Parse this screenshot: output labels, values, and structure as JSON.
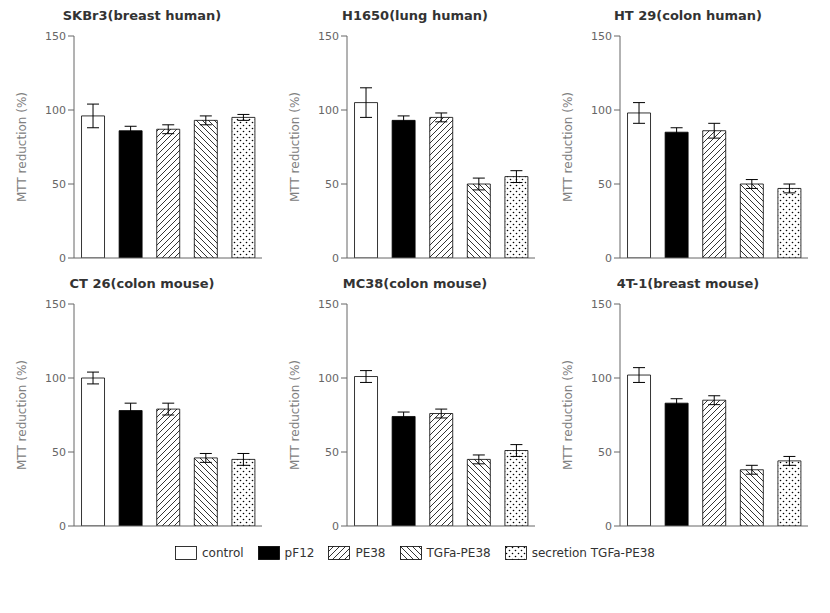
{
  "chart_data": [
    {
      "type": "bar",
      "title": "SKBr3(breast human)",
      "categories": [
        "control",
        "pF12",
        "PE38",
        "TGFa-PE38",
        "secretion TGFa-PE38"
      ],
      "values": [
        96,
        86,
        87,
        93,
        95
      ],
      "errors": [
        8,
        3,
        3,
        3,
        2
      ],
      "colors": [
        "white",
        "black",
        "white",
        "white",
        "white"
      ],
      "ylabel": "MTT reduction (%)",
      "ylim": [
        0,
        150
      ],
      "yticks": [
        0,
        50,
        100,
        150
      ],
      "tick_labels": "y",
      "grid": false,
      "legend": "bottom"
    },
    {
      "type": "bar",
      "title": "H1650(lung human)",
      "categories": [
        "control",
        "pF12",
        "PE38",
        "TGFa-PE38",
        "secretion TGFa-PE38"
      ],
      "values": [
        105,
        93,
        95,
        50,
        55
      ],
      "errors": [
        10,
        3,
        3,
        4,
        4
      ],
      "colors": [
        "white",
        "black",
        "white",
        "white",
        "white"
      ],
      "ylabel": "MTT reduction (%)",
      "ylim": [
        0,
        150
      ],
      "yticks": [
        0,
        50,
        100,
        150
      ],
      "tick_labels": "y",
      "grid": false,
      "legend": "bottom"
    },
    {
      "type": "bar",
      "title": "HT 29(colon human)",
      "categories": [
        "control",
        "pF12",
        "PE38",
        "TGFa-PE38",
        "secretion TGFa-PE38"
      ],
      "values": [
        98,
        85,
        86,
        50,
        47
      ],
      "errors": [
        7,
        3,
        5,
        3,
        3
      ],
      "colors": [
        "white",
        "black",
        "white",
        "white",
        "white"
      ],
      "ylabel": "MTT reduction (%)",
      "ylim": [
        0,
        150
      ],
      "yticks": [
        0,
        50,
        100,
        150
      ],
      "tick_labels": "y",
      "grid": false,
      "legend": "bottom"
    },
    {
      "type": "bar",
      "title": "CT 26(colon mouse)",
      "categories": [
        "control",
        "pF12",
        "PE38",
        "TGFa-PE38",
        "secretion TGFa-PE38"
      ],
      "values": [
        100,
        78,
        79,
        46,
        45
      ],
      "errors": [
        4,
        5,
        4,
        3,
        4
      ],
      "colors": [
        "white",
        "black",
        "white",
        "white",
        "white"
      ],
      "ylabel": "MTT reduction (%)",
      "ylim": [
        0,
        150
      ],
      "yticks": [
        0,
        50,
        100,
        150
      ],
      "tick_labels": "y",
      "grid": false,
      "legend": "bottom"
    },
    {
      "type": "bar",
      "title": "MC38(colon mouse)",
      "categories": [
        "control",
        "pF12",
        "PE38",
        "TGFa-PE38",
        "secretion TGFa-PE38"
      ],
      "values": [
        101,
        74,
        76,
        45,
        51
      ],
      "errors": [
        4,
        3,
        3,
        3,
        4
      ],
      "colors": [
        "white",
        "black",
        "white",
        "white",
        "white"
      ],
      "ylabel": "MTT reduction (%)",
      "ylim": [
        0,
        150
      ],
      "yticks": [
        0,
        50,
        100,
        150
      ],
      "tick_labels": "y",
      "grid": false,
      "legend": "bottom"
    },
    {
      "type": "bar",
      "title": "4T-1(breast mouse)",
      "categories": [
        "control",
        "pF12",
        "PE38",
        "TGFa-PE38",
        "secretion TGFa-PE38"
      ],
      "values": [
        102,
        83,
        85,
        38,
        44
      ],
      "errors": [
        5,
        3,
        3,
        3,
        3
      ],
      "colors": [
        "white",
        "black",
        "white",
        "white",
        "white"
      ],
      "ylabel": "MTT reduction (%)",
      "ylim": [
        0,
        150
      ],
      "yticks": [
        0,
        50,
        100,
        150
      ],
      "tick_labels": "y",
      "grid": false,
      "legend": "bottom"
    }
  ]
}
